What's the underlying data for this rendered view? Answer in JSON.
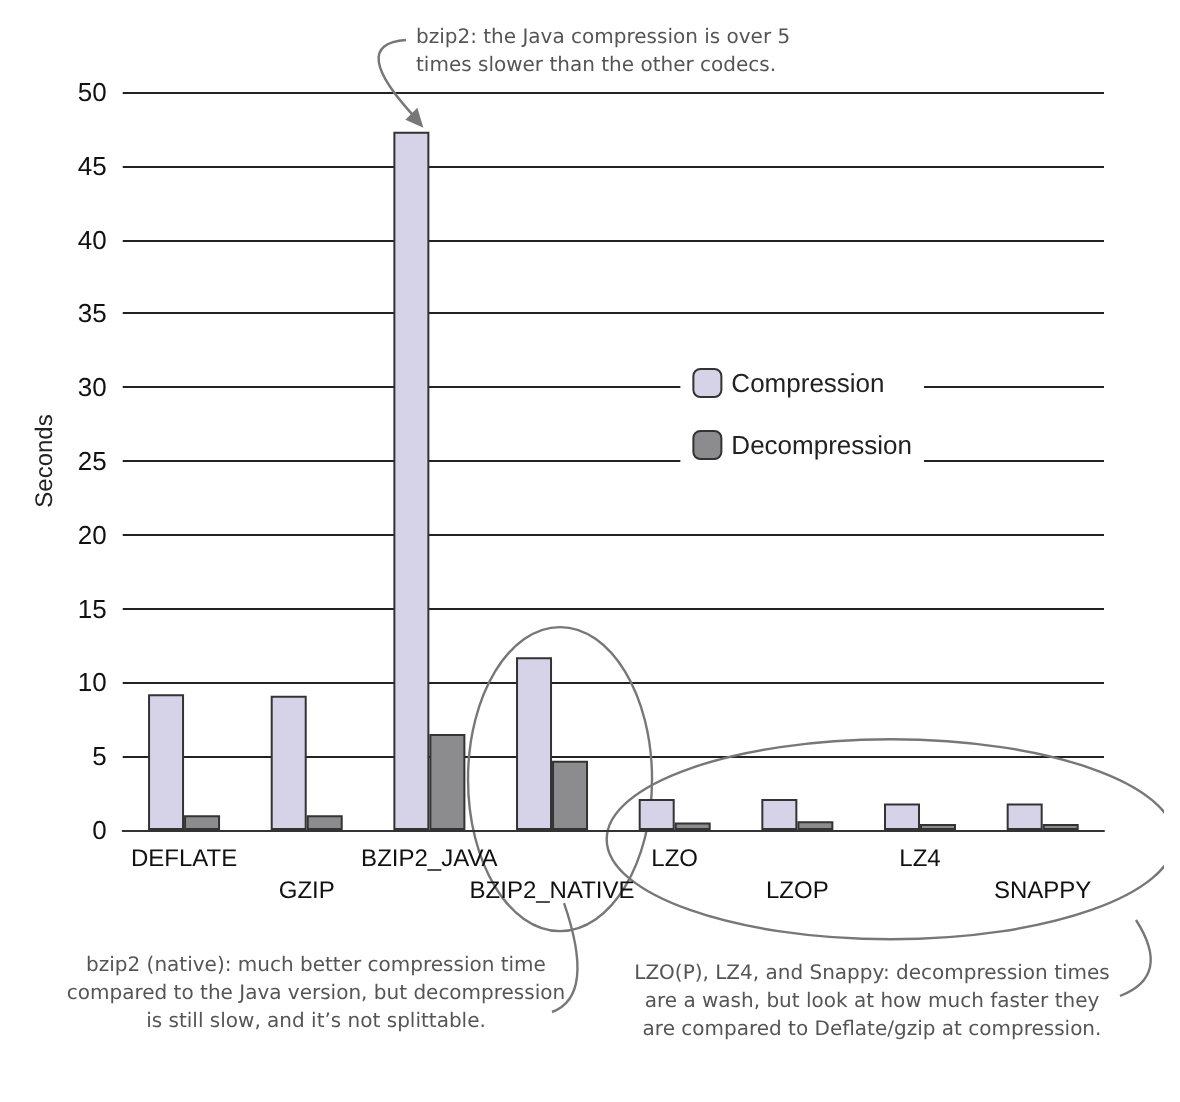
{
  "chart_data": {
    "type": "bar",
    "ylabel": "Seconds",
    "categories": [
      "DEFLATE",
      "GZIP",
      "BZIP2_JAVA",
      "BZIP2_NATIVE",
      "LZO",
      "LZOP",
      "LZ4",
      "SNAPPY"
    ],
    "series": [
      {
        "name": "Compression",
        "color": "#d6d2e8",
        "values": [
          9.2,
          9.1,
          47.3,
          11.7,
          2.1,
          2.1,
          1.8,
          1.8
        ]
      },
      {
        "name": "Decompression",
        "color": "#8c8c8e",
        "values": [
          1.0,
          1.0,
          6.5,
          4.7,
          0.5,
          0.6,
          0.4,
          0.4
        ]
      }
    ],
    "ylim": [
      0,
      50
    ],
    "yticks": [
      0,
      5,
      10,
      15,
      20,
      25,
      30,
      35,
      40,
      45,
      50
    ],
    "grid": "y",
    "legend": "right",
    "annotations": [
      {
        "text": "bzip2: the Java compression is over 5\ntimes slower than the other codecs.",
        "x": "BZIP2_JAVA",
        "y": 47.3
      },
      "bzip2 (native): much better compression time\ncompared to the Java version, but decompression\nis still slow, and it’s not splittable.",
      "LZO(P), LZ4, and Snappy: decompression times\nare a wash, but look at how much faster they\nare compared to Deflate/gzip at compression."
    ]
  }
}
